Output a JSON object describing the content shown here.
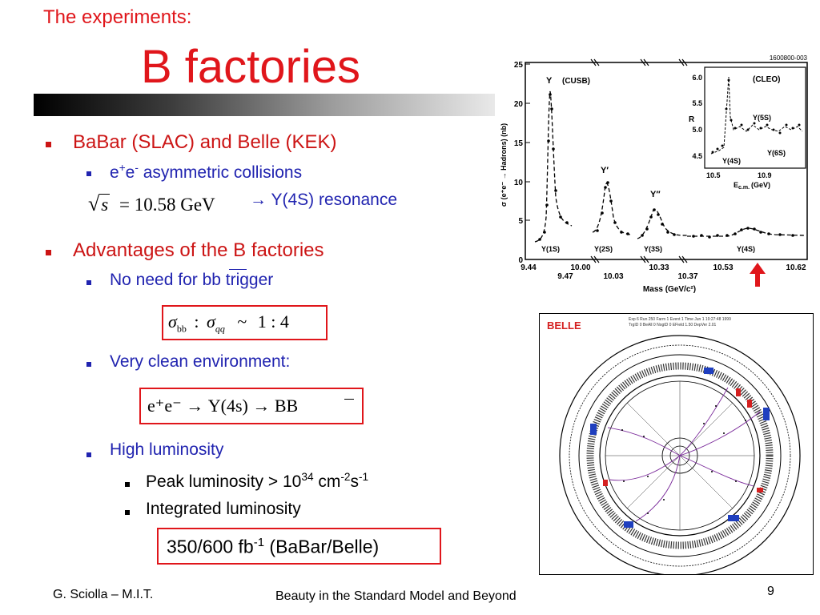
{
  "header": {
    "kicker": "The experiments:",
    "title": "B factories"
  },
  "bullets": {
    "b1": "BaBar (SLAC) and Belle (KEK)",
    "b1_sub1_pre": "e",
    "b1_sub1_plus": "+",
    "b1_sub1_e": "e",
    "b1_sub1_minus": "-",
    "b1_sub1_rest": " asymmetric collisions",
    "sqrt_s": "s",
    "sqrt_eq": "= 10.58 GeV",
    "resonance": "→ Υ(4S) resonance",
    "b2": "Advantages of the B factories",
    "b2_sub1": "No need for bb trigger",
    "ratio_lhs_sub": "bb",
    "ratio_colon": ":",
    "ratio_rhs_sub": "qq",
    "ratio_tilde": "~",
    "ratio_value": "1 : 4",
    "b2_sub2": "Very clean environment:",
    "decay": "e⁺e⁻  →  Υ(4s)  →  BB",
    "b2_sub3": "High luminosity",
    "peak_pre": "Peak luminosity > 10",
    "peak_exp": "34",
    "peak_unit": " cm",
    "peak_cm_exp": "-2",
    "peak_s": "s",
    "peak_s_exp": "-1",
    "integrated": "Integrated luminosity",
    "lumi_pre": "350/600 fb",
    "lumi_exp": "-1",
    "lumi_post": " (BaBar/Belle)"
  },
  "footer": {
    "author": "G. Sciolla – M.I.T.",
    "course": "Beauty in the Standard Model and Beyond",
    "page": "9"
  },
  "plot": {
    "id_tag": "1600800-003",
    "cusb": "(CUSB)",
    "cleo": "(CLEO)",
    "ylabel": "σ (e⁺e⁻ → Hadrons) (nb)",
    "xlabel": "Mass (GeV/c²)",
    "y_ticks": [
      "25",
      "20",
      "15",
      "10",
      "5",
      "0"
    ],
    "x_ticks_top": [
      "9.44",
      "10.00",
      "10.33",
      "10.53",
      "10.62"
    ],
    "x_ticks_bottom": [
      "9.47",
      "10.03",
      "10.37"
    ],
    "peaks": [
      "Υ",
      "Υ′",
      "Υ″"
    ],
    "states": [
      "Υ(1S)",
      "Υ(2S)",
      "Υ(3S)",
      "Υ(4S)"
    ],
    "inset_y_ticks": [
      "6.0",
      "5.5",
      "5.0",
      "4.5"
    ],
    "inset_ylabel": "R",
    "inset_states": [
      "Υ(5S)",
      "Υ(6S)",
      "Υ(4S)"
    ],
    "inset_x_ticks": [
      "10.5",
      "10.9"
    ],
    "inset_xlabel": "E",
    "inset_xlabel_sub": "c.m.",
    "inset_xlabel_unit": "(GeV)"
  },
  "event": {
    "label": "BELLE",
    "info1": "Exp 6 Run 250 Farm 1 Event 1 Time Jun 1 19:27:48 1999",
    "info2": "TrgID 0 BeAll 0 NogtD 0 EField 1.50 DepVer 2.01"
  },
  "colors": {
    "accent_red": "#e0161b",
    "blue_text": "#2124b0"
  }
}
